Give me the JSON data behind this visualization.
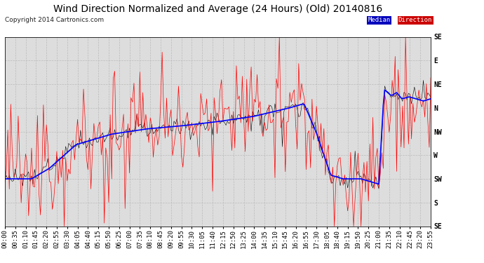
{
  "title": "Wind Direction Normalized and Average (24 Hours) (Old) 20140816",
  "copyright": "Copyright 2014 Cartronics.com",
  "direction_labels": [
    "SE",
    "S",
    "SW",
    "W",
    "NW",
    "N",
    "NE",
    "E",
    "SE"
  ],
  "direction_values": [
    0,
    45,
    90,
    135,
    180,
    225,
    270,
    315,
    360
  ],
  "ylim": [
    0,
    360
  ],
  "legend_median_bg": "#0000bb",
  "legend_direction_bg": "#cc0000",
  "legend_median_text": "Median",
  "legend_direction_text": "Direction",
  "background_color": "#ffffff",
  "plot_bg_color": "#dddddd",
  "grid_color": "#bbbbbb",
  "red_line_color": "#ff0000",
  "blue_line_color": "#0000ff",
  "dark_line_color": "#000000",
  "title_fontsize": 10,
  "copyright_fontsize": 6.5,
  "tick_fontsize": 6.5
}
